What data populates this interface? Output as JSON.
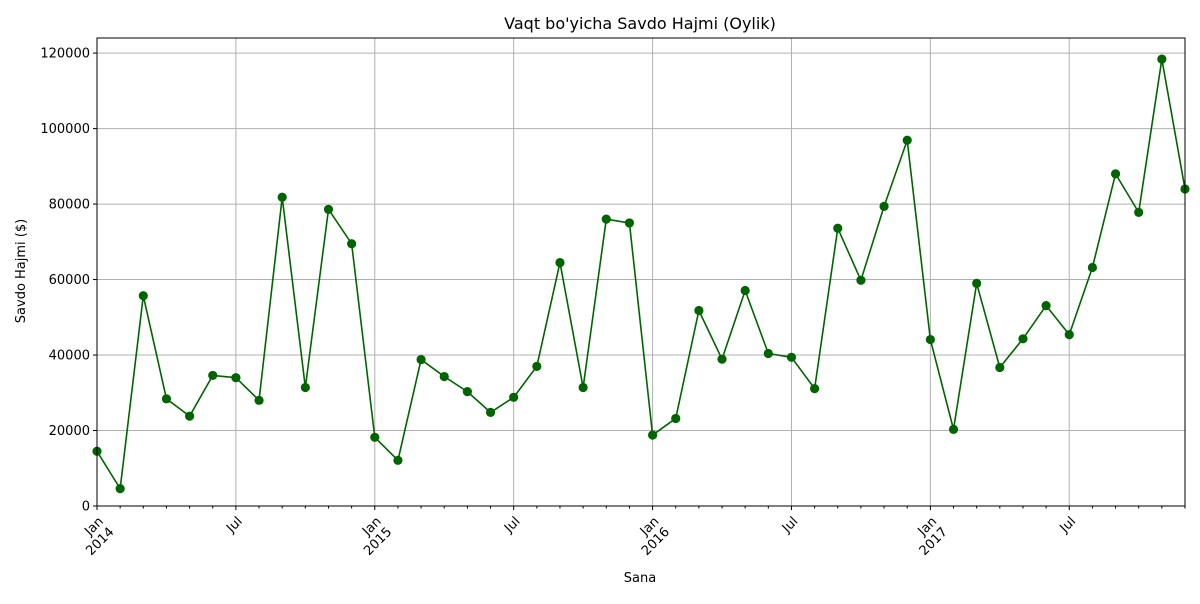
{
  "chart_data": {
    "type": "line",
    "title": "Vaqt bo'yicha Savdo Hajmi (Oylik)",
    "xlabel": "Sana",
    "ylabel": "Savdo Hajmi ($)",
    "ylim": [
      0,
      124000
    ],
    "xlim": [
      "2014-01",
      "2017-12"
    ],
    "yticks": [
      0,
      20000,
      40000,
      60000,
      80000,
      100000,
      120000
    ],
    "xticks": [
      {
        "month": "2014-01",
        "label": "Jan",
        "year": "2014"
      },
      {
        "month": "2014-07",
        "label": "Jul",
        "year": ""
      },
      {
        "month": "2015-01",
        "label": "Jan",
        "year": "2015"
      },
      {
        "month": "2015-07",
        "label": "Jul",
        "year": ""
      },
      {
        "month": "2016-01",
        "label": "Jan",
        "year": "2016"
      },
      {
        "month": "2016-07",
        "label": "Jul",
        "year": ""
      },
      {
        "month": "2017-01",
        "label": "Jan",
        "year": "2017"
      },
      {
        "month": "2017-07",
        "label": "Jul",
        "year": ""
      }
    ],
    "grid": true,
    "line_color": "#006400",
    "marker": "circle",
    "series": [
      {
        "name": "",
        "x": [
          "2014-01",
          "2014-02",
          "2014-03",
          "2014-04",
          "2014-05",
          "2014-06",
          "2014-07",
          "2014-08",
          "2014-09",
          "2014-10",
          "2014-11",
          "2014-12",
          "2015-01",
          "2015-02",
          "2015-03",
          "2015-04",
          "2015-05",
          "2015-06",
          "2015-07",
          "2015-08",
          "2015-09",
          "2015-10",
          "2015-11",
          "2015-12",
          "2016-01",
          "2016-02",
          "2016-03",
          "2016-04",
          "2016-05",
          "2016-06",
          "2016-07",
          "2016-08",
          "2016-09",
          "2016-10",
          "2016-11",
          "2016-12",
          "2017-01",
          "2017-02",
          "2017-03",
          "2017-04",
          "2017-05",
          "2017-06",
          "2017-07",
          "2017-08",
          "2017-09",
          "2017-10",
          "2017-11",
          "2017-12"
        ],
        "values": [
          14500,
          4600,
          55700,
          28400,
          23800,
          34600,
          34000,
          28000,
          81800,
          31400,
          78600,
          69500,
          18200,
          12100,
          38800,
          34300,
          30300,
          24800,
          28800,
          37000,
          64500,
          31400,
          76000,
          75000,
          18800,
          23200,
          51800,
          38900,
          57100,
          40400,
          39400,
          31100,
          73600,
          59800,
          79400,
          96900,
          44100,
          20300,
          59000,
          36700,
          44300,
          53100,
          45400,
          63200,
          88000,
          77800,
          118400,
          84000
        ]
      }
    ]
  }
}
